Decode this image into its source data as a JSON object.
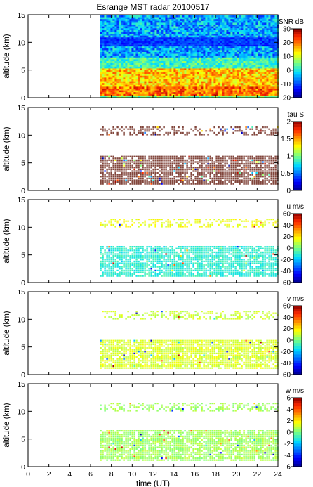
{
  "chart_data": {
    "type": "heatmap",
    "title": "Esrange MST radar 20100517",
    "xlabel": "time (UT)",
    "xlim": [
      0,
      24
    ],
    "xticks": [
      0,
      2,
      4,
      6,
      8,
      10,
      12,
      14,
      16,
      18,
      20,
      22,
      24
    ],
    "xtick_labels": [
      "0",
      "2",
      "4",
      "6",
      "8",
      "10",
      "12",
      "14",
      "16",
      "18",
      "20",
      "22",
      "24"
    ],
    "data_start_time": 6.9,
    "grid": false,
    "panels": [
      {
        "id": "snr",
        "ylabel": "altitude (km)",
        "ylim": [
          0,
          15
        ],
        "yticks": [
          0,
          5,
          10,
          15
        ],
        "colorbar": {
          "label": "SNR dB",
          "range": [
            -20,
            30
          ],
          "ticks": [
            30,
            20,
            10,
            0,
            -10,
            -20
          ]
        },
        "layers": [
          {
            "alt_range": [
              0.3,
              2.2
            ],
            "typical_value": 20
          },
          {
            "alt_range": [
              2.2,
              6.0
            ],
            "typical_value": 15
          },
          {
            "alt_range": [
              6.0,
              15
            ],
            "typical_value": -5
          }
        ]
      },
      {
        "id": "tau",
        "ylabel": "altitude (km)",
        "ylim": [
          0,
          15
        ],
        "yticks": [
          0,
          5,
          10,
          15
        ],
        "colorbar": {
          "label": "tau S",
          "range": [
            0,
            2
          ],
          "ticks": [
            2,
            1.5,
            1,
            0.5,
            0
          ]
        },
        "layers": [
          {
            "alt_range": [
              1.2,
              6.5
            ],
            "typical_value": 1.8
          },
          {
            "alt_range": [
              10.2,
              11.6
            ],
            "typical_value": 1.8
          }
        ]
      },
      {
        "id": "u",
        "ylabel": "altitude (km)",
        "ylim": [
          0,
          15
        ],
        "yticks": [
          0,
          5,
          10,
          15
        ],
        "colorbar": {
          "label": "u m/s",
          "range": [
            -60,
            60
          ],
          "ticks": [
            60,
            40,
            20,
            0,
            -20,
            -40,
            -60
          ]
        },
        "layers": [
          {
            "alt_range": [
              1.2,
              6.8
            ],
            "typical_value": -10
          },
          {
            "alt_range": [
              10.2,
              11.6
            ],
            "typical_value": 15
          }
        ]
      },
      {
        "id": "v",
        "ylabel": "altitude (km)",
        "ylim": [
          0,
          15
        ],
        "yticks": [
          0,
          5,
          10,
          15
        ],
        "colorbar": {
          "label": "v m/s",
          "range": [
            -60,
            60
          ],
          "ticks": [
            60,
            40,
            20,
            0,
            -20,
            -40,
            -60
          ]
        },
        "layers": [
          {
            "alt_range": [
              1.2,
              6.5
            ],
            "typical_value": 12
          },
          {
            "alt_range": [
              10.2,
              11.6
            ],
            "typical_value": 10
          }
        ]
      },
      {
        "id": "w",
        "ylabel": "altitude (km)",
        "ylim": [
          0,
          15
        ],
        "yticks": [
          0,
          5,
          10,
          15
        ],
        "colorbar": {
          "label": "w m/s",
          "range": [
            -6,
            6
          ],
          "ticks": [
            6,
            4,
            2,
            0,
            -2,
            -4,
            -6
          ]
        },
        "layers": [
          {
            "alt_range": [
              1.2,
              6.8
            ],
            "typical_value": 0.5
          },
          {
            "alt_range": [
              10.2,
              11.6
            ],
            "typical_value": 0.5
          }
        ]
      }
    ]
  }
}
